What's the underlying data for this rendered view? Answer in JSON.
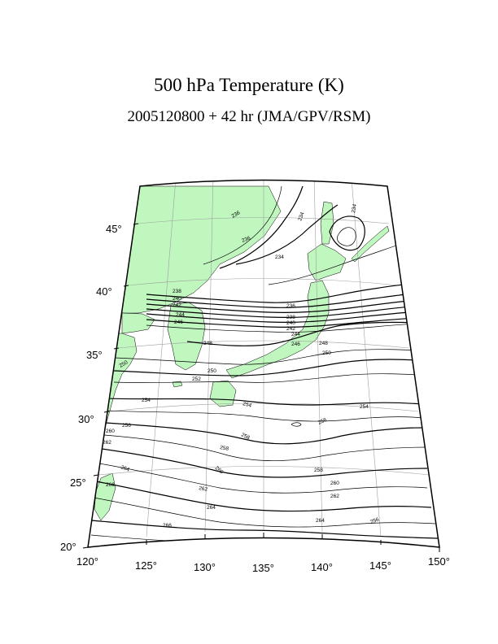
{
  "title": "500 hPa Temperature (K)",
  "subtitle": "2005120800 + 42 hr (JMA/GPV/RSM)",
  "colors": {
    "land": "#bff7bf",
    "frame": "#000000",
    "grid": "#a0a0a0",
    "contour": "#000000"
  },
  "axes": {
    "lon_labels": [
      "120°",
      "125°",
      "130°",
      "135°",
      "140°",
      "145°",
      "150°"
    ],
    "lat_labels": [
      "20°",
      "25°",
      "30°",
      "35°",
      "40°",
      "45°"
    ]
  },
  "contour_labels": [
    "236",
    "236",
    "234",
    "234",
    "234",
    "238",
    "240",
    "242",
    "244",
    "246",
    "248",
    "236",
    "238",
    "240",
    "242",
    "244",
    "246",
    "248",
    "250",
    "250",
    "252",
    "250",
    "254",
    "254",
    "254",
    "256",
    "256",
    "258",
    "258",
    "260",
    "260",
    "262",
    "262",
    "264",
    "264",
    "264",
    "266",
    "266",
    "256",
    "258",
    "260",
    "262"
  ]
}
